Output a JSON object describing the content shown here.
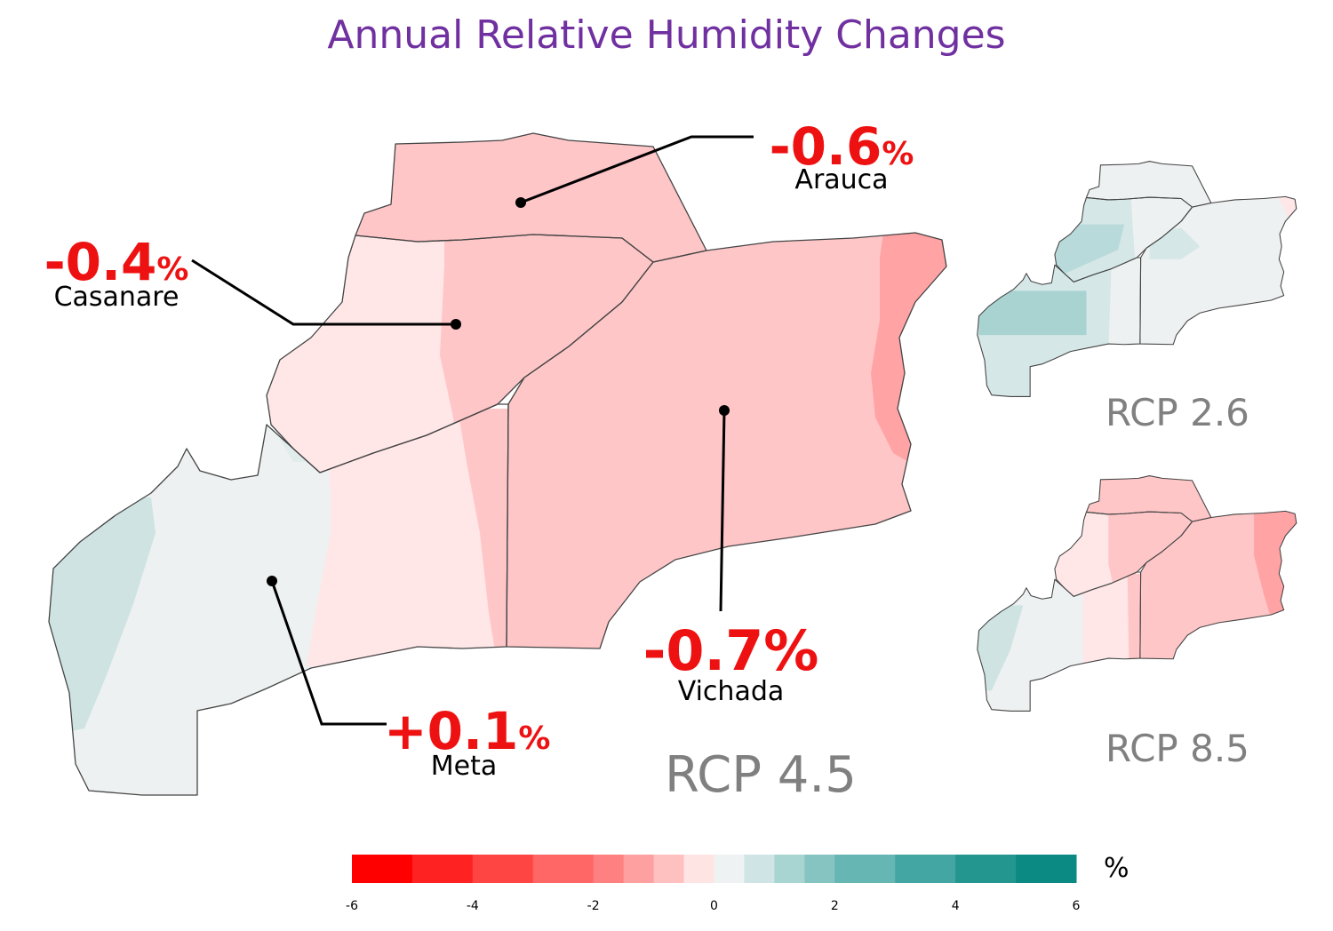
{
  "title": "Annual Relative Humidity Changes",
  "colors": {
    "title": "#7030a0",
    "callout_value": "#ee1111",
    "scenario_label": "#808080",
    "border": "#444444"
  },
  "regions": [
    {
      "name": "Arauca",
      "value": "-0.6",
      "unit": "%"
    },
    {
      "name": "Casanare",
      "value": "-0.4",
      "unit": "%"
    },
    {
      "name": "Vichada",
      "value": "-0.7",
      "unit": "%"
    },
    {
      "name": "Meta",
      "value": "+0.1",
      "unit": "%"
    }
  ],
  "scenarios": {
    "main": "RCP 4.5",
    "inset_top": "RCP 2.6",
    "inset_bottom": "RCP 8.5"
  },
  "legend": {
    "unit": "%",
    "min": -6,
    "max": 6,
    "ticks": [
      "-6",
      "-4",
      "-2",
      "0",
      "2",
      "4",
      "6"
    ],
    "bins": [
      -6,
      -5,
      -4,
      -3,
      -2,
      -1.5,
      -1,
      -0.5,
      0,
      0.5,
      1,
      1.5,
      2,
      3,
      4,
      5,
      6
    ],
    "colors": [
      "#ff0000",
      "#ff2222",
      "#ff4444",
      "#ff6666",
      "#ff8080",
      "#ffa0a0",
      "#ffc0c0",
      "#ffe4e4",
      "#eef2f2",
      "#cfe4e4",
      "#a8d4d2",
      "#86c4c2",
      "#66b6b4",
      "#44a6a2",
      "#22968f",
      "#0a8a82"
    ]
  }
}
